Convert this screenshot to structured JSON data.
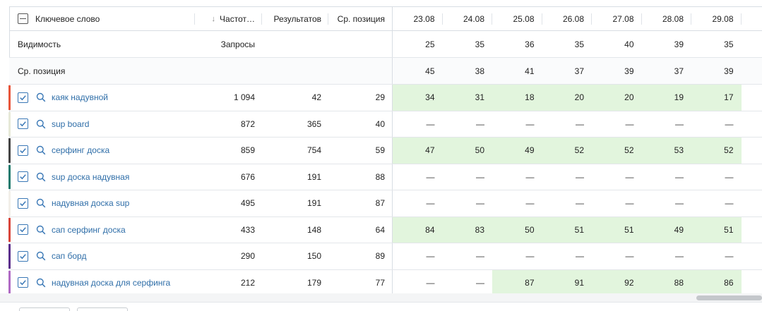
{
  "header": {
    "keyword_label": "Ключевое слово",
    "sort_icon": "arrow-down-icon",
    "freq_label": "Частот…",
    "results_label": "Результатов",
    "avg_pos_label": "Ср. позиция",
    "dates": [
      "23.08",
      "24.08",
      "25.08",
      "26.08",
      "27.08",
      "28.08",
      "29.08"
    ]
  },
  "summary": [
    {
      "label": "Видимость",
      "freq": "Запросы",
      "values": [
        "25",
        "35",
        "36",
        "35",
        "40",
        "39",
        "35"
      ]
    },
    {
      "label": "Ср. позиция",
      "freq": "",
      "values": [
        "45",
        "38",
        "41",
        "37",
        "39",
        "37",
        "39"
      ]
    }
  ],
  "rows": [
    {
      "keyword": "каяк надувной",
      "stripe": "#e8553a",
      "freq": "1 094",
      "results": "42",
      "pos": "29",
      "values": [
        "34",
        "31",
        "18",
        "20",
        "20",
        "19",
        "17"
      ],
      "green": [
        true,
        true,
        true,
        true,
        true,
        true,
        true
      ]
    },
    {
      "keyword": "sup board",
      "stripe": "#e6e9d8",
      "freq": "872",
      "results": "365",
      "pos": "40",
      "values": [
        "—",
        "—",
        "—",
        "—",
        "—",
        "—",
        "—"
      ],
      "green": [
        false,
        false,
        false,
        false,
        false,
        false,
        false
      ]
    },
    {
      "keyword": "серфинг доска",
      "stripe": "#444444",
      "freq": "859",
      "results": "754",
      "pos": "59",
      "values": [
        "47",
        "50",
        "49",
        "52",
        "52",
        "53",
        "52"
      ],
      "green": [
        true,
        true,
        true,
        true,
        true,
        true,
        true
      ]
    },
    {
      "keyword": "sup доска надувная",
      "stripe": "#1f7a6d",
      "freq": "676",
      "results": "191",
      "pos": "88",
      "values": [
        "—",
        "—",
        "—",
        "—",
        "—",
        "—",
        "—"
      ],
      "green": [
        false,
        false,
        false,
        false,
        false,
        false,
        false
      ]
    },
    {
      "keyword": "надувная доска sup",
      "stripe": "#f2efe9",
      "freq": "495",
      "results": "191",
      "pos": "87",
      "values": [
        "—",
        "—",
        "—",
        "—",
        "—",
        "—",
        "—"
      ],
      "green": [
        false,
        false,
        false,
        false,
        false,
        false,
        false
      ]
    },
    {
      "keyword": "сап серфинг доска",
      "stripe": "#d9453b",
      "freq": "433",
      "results": "148",
      "pos": "64",
      "values": [
        "84",
        "83",
        "50",
        "51",
        "51",
        "49",
        "51"
      ],
      "green": [
        true,
        true,
        true,
        true,
        true,
        true,
        true
      ]
    },
    {
      "keyword": "сап борд",
      "stripe": "#5b2f8c",
      "freq": "290",
      "results": "150",
      "pos": "89",
      "values": [
        "—",
        "—",
        "—",
        "—",
        "—",
        "—",
        "—"
      ],
      "green": [
        false,
        false,
        false,
        false,
        false,
        false,
        false
      ]
    },
    {
      "keyword": "надувная доска для серфинга",
      "stripe": "#b06ac4",
      "freq": "212",
      "results": "179",
      "pos": "77",
      "values": [
        "—",
        "—",
        "87",
        "91",
        "92",
        "88",
        "86"
      ],
      "green": [
        false,
        false,
        true,
        true,
        true,
        true,
        true
      ]
    }
  ],
  "colors": {
    "link": "#2f6ea8",
    "checkbox": "#3a78b6",
    "highlight": "#e2f5dd"
  }
}
